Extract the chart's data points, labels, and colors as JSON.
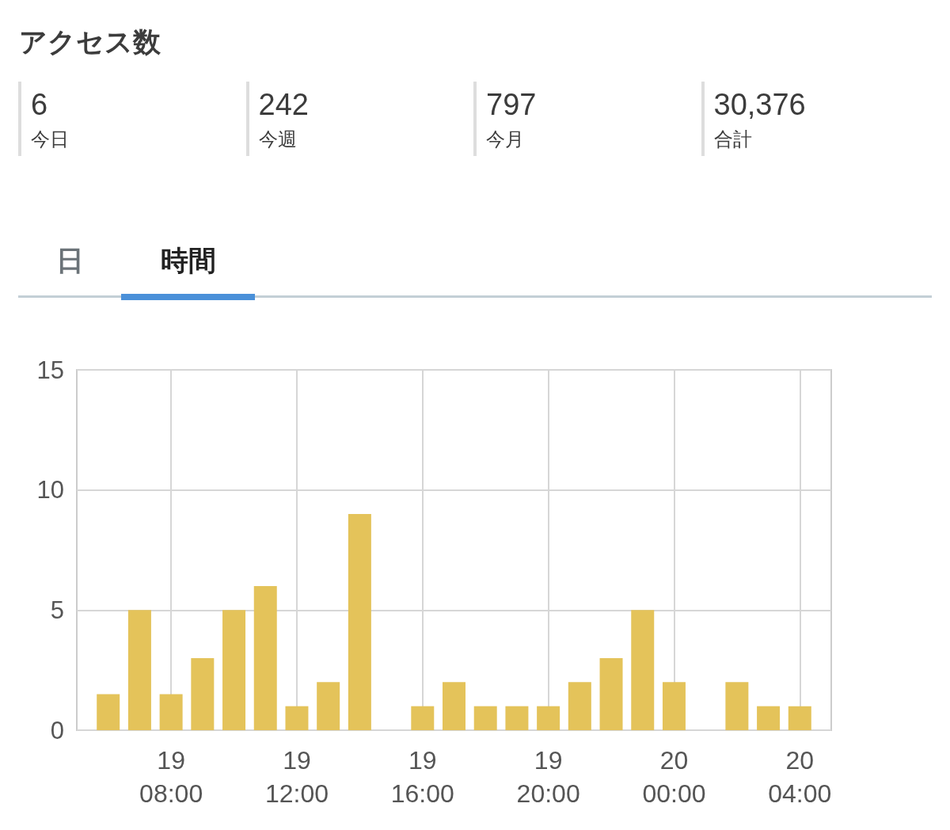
{
  "chart_data": [
    {
      "type": "other",
      "title": "アクセス数",
      "annotations": [
        "6",
        "今日",
        "242",
        "今週",
        "797",
        "今月",
        "30,376",
        "合計"
      ]
    },
    {
      "type": "bar",
      "annotations": [
        "日",
        "時間"
      ],
      "categories": [
        null,
        null,
        null,
        "19\n08:00",
        null,
        null,
        null,
        "19\n12:00",
        null,
        null,
        null,
        "19\n16:00",
        null,
        null,
        null,
        "19\n20:00",
        null,
        null,
        null,
        "20\n00:00",
        null,
        null,
        null,
        "20\n04:00",
        null
      ],
      "values": [
        null,
        1.5,
        5,
        1.5,
        3,
        5,
        6,
        1,
        2,
        9,
        null,
        1,
        2,
        1,
        1,
        1,
        2,
        3,
        5,
        2,
        null,
        2,
        1,
        1,
        null
      ],
      "color": "#e4c35a",
      "ylim": [
        0,
        15
      ],
      "yticks": [
        0,
        5,
        10,
        15
      ],
      "grid": true
    }
  ]
}
